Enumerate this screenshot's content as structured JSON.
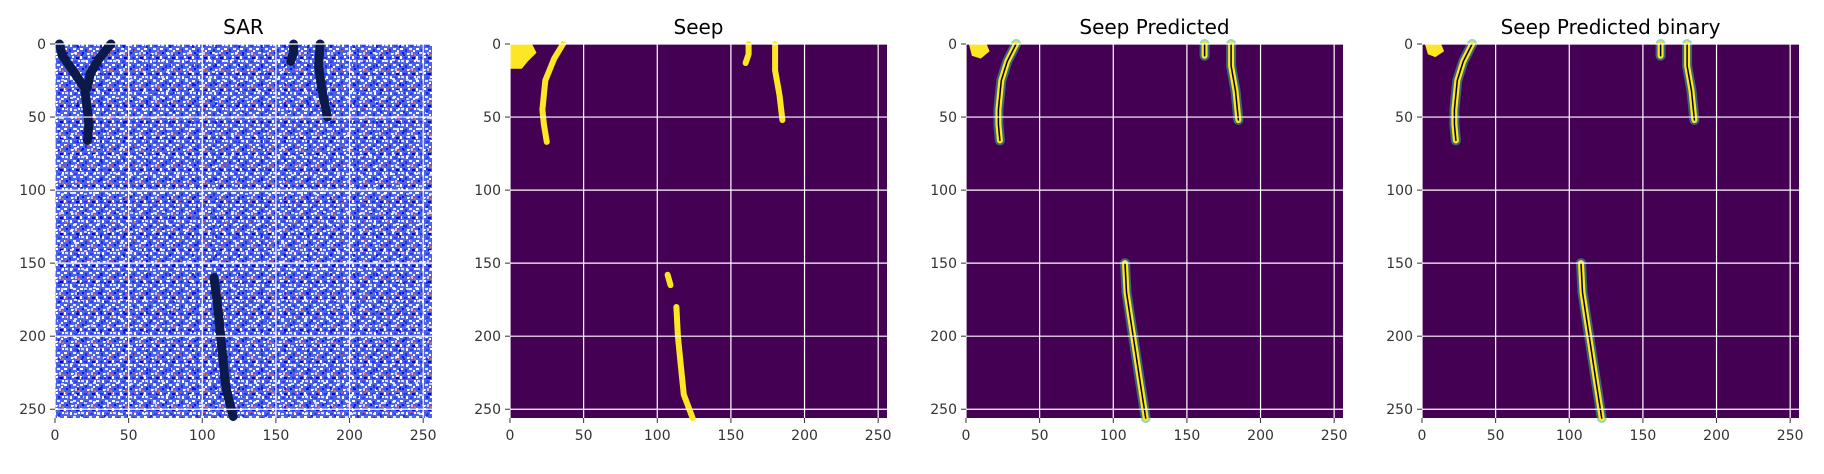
{
  "figure": {
    "panels": [
      {
        "title": "SAR"
      },
      {
        "title": "Seep"
      },
      {
        "title": "Seep Predicted"
      },
      {
        "title": "Seep Predicted binary"
      }
    ]
  },
  "chart_data": [
    {
      "type": "heatmap",
      "title": "SAR",
      "colormap": "bwr",
      "xlim": [
        0,
        256
      ],
      "ylim": [
        256,
        0
      ],
      "xticks": [
        0,
        50,
        100,
        150,
        200,
        250
      ],
      "yticks": [
        0,
        50,
        100,
        150,
        200,
        250
      ],
      "grid": true,
      "overlay": "seep contours in dark navy",
      "seep_regions": [
        {
          "name": "top-left",
          "path": [
            [
              3,
              0
            ],
            [
              5,
              8
            ],
            [
              12,
              18
            ],
            [
              20,
              30
            ],
            [
              22,
              45
            ],
            [
              23,
              55
            ],
            [
              22,
              66
            ]
          ]
        },
        {
          "name": "top-left-fork",
          "path": [
            [
              38,
              0
            ],
            [
              30,
              10
            ],
            [
              24,
              20
            ],
            [
              22,
              30
            ]
          ]
        },
        {
          "name": "top-center",
          "path": [
            [
              162,
              0
            ],
            [
              162,
              6
            ],
            [
              160,
              12
            ]
          ]
        },
        {
          "name": "top-right",
          "path": [
            [
              180,
              0
            ],
            [
              179,
              15
            ],
            [
              181,
              30
            ],
            [
              185,
              50
            ]
          ]
        },
        {
          "name": "bottom-center",
          "path": [
            [
              108,
              160
            ],
            [
              110,
              175
            ],
            [
              112,
              195
            ],
            [
              114,
              215
            ],
            [
              116,
              235
            ],
            [
              121,
              255
            ]
          ]
        }
      ]
    },
    {
      "type": "heatmap",
      "title": "Seep",
      "colormap": "viridis",
      "xlim": [
        0,
        256
      ],
      "ylim": [
        256,
        0
      ],
      "xticks": [
        0,
        50,
        100,
        150,
        200,
        250
      ],
      "yticks": [
        0,
        50,
        100,
        150,
        200,
        250
      ],
      "grid": true,
      "background_color": "#440154",
      "seep_color": "#fde725",
      "seep_regions": [
        {
          "name": "top-left-blob",
          "polygon": [
            [
              0,
              0
            ],
            [
              15,
              0
            ],
            [
              18,
              6
            ],
            [
              12,
              12
            ],
            [
              8,
              17
            ],
            [
              0,
              17
            ]
          ]
        },
        {
          "name": "top-left-streak",
          "path": [
            [
              36,
              0
            ],
            [
              30,
              10
            ],
            [
              24,
              25
            ],
            [
              22,
              45
            ],
            [
              23,
              55
            ],
            [
              25,
              67
            ]
          ]
        },
        {
          "name": "top-center",
          "path": [
            [
              162,
              0
            ],
            [
              162,
              7
            ],
            [
              160,
              13
            ]
          ]
        },
        {
          "name": "top-right",
          "path": [
            [
              180,
              0
            ],
            [
              180,
              18
            ],
            [
              183,
              35
            ],
            [
              185,
              52
            ]
          ]
        },
        {
          "name": "bottom-left-dot",
          "path": [
            [
              107,
              158
            ],
            [
              109,
              165
            ]
          ]
        },
        {
          "name": "bottom-streak",
          "path": [
            [
              113,
              180
            ],
            [
              114,
              200
            ],
            [
              116,
              220
            ],
            [
              118,
              240
            ],
            [
              124,
              256
            ]
          ]
        }
      ]
    },
    {
      "type": "heatmap",
      "title": "Seep Predicted",
      "colormap": "viridis",
      "xlim": [
        0,
        256
      ],
      "ylim": [
        256,
        0
      ],
      "xticks": [
        0,
        50,
        100,
        150,
        200,
        250
      ],
      "yticks": [
        0,
        50,
        100,
        150,
        200,
        250
      ],
      "grid": true,
      "background_color": "#440154",
      "seep_color": "#fde725",
      "overlay": "ground truth contours in black",
      "seep_regions": [
        {
          "name": "top-left-blob",
          "polygon": [
            [
              2,
              0
            ],
            [
              14,
              0
            ],
            [
              16,
              5
            ],
            [
              10,
              10
            ],
            [
              4,
              8
            ]
          ]
        },
        {
          "name": "top-left-streak",
          "path": [
            [
              34,
              0
            ],
            [
              28,
              12
            ],
            [
              24,
              25
            ],
            [
              22,
              45
            ],
            [
              22,
              55
            ],
            [
              23,
              66
            ]
          ]
        },
        {
          "name": "top-center",
          "path": [
            [
              162,
              0
            ],
            [
              162,
              8
            ]
          ]
        },
        {
          "name": "top-right",
          "path": [
            [
              180,
              0
            ],
            [
              180,
              15
            ],
            [
              183,
              32
            ],
            [
              185,
              52
            ]
          ]
        },
        {
          "name": "bottom-streak",
          "path": [
            [
              108,
              150
            ],
            [
              109,
              170
            ],
            [
              112,
              190
            ],
            [
              115,
              210
            ],
            [
              118,
              230
            ],
            [
              122,
              256
            ]
          ]
        }
      ]
    },
    {
      "type": "heatmap",
      "title": "Seep Predicted binary",
      "colormap": "viridis",
      "xlim": [
        0,
        256
      ],
      "ylim": [
        256,
        0
      ],
      "xticks": [
        0,
        50,
        100,
        150,
        200,
        250
      ],
      "yticks": [
        0,
        50,
        100,
        150,
        200,
        250
      ],
      "grid": true,
      "background_color": "#440154",
      "seep_color": "#fde725",
      "overlay": "ground truth contours in black",
      "seep_regions": [
        {
          "name": "top-left-blob",
          "polygon": [
            [
              2,
              0
            ],
            [
              13,
              0
            ],
            [
              15,
              5
            ],
            [
              9,
              9
            ],
            [
              4,
              7
            ]
          ]
        },
        {
          "name": "top-left-streak",
          "path": [
            [
              34,
              0
            ],
            [
              28,
              12
            ],
            [
              24,
              25
            ],
            [
              22,
              45
            ],
            [
              22,
              55
            ],
            [
              23,
              66
            ]
          ]
        },
        {
          "name": "top-center",
          "path": [
            [
              162,
              0
            ],
            [
              162,
              8
            ]
          ]
        },
        {
          "name": "top-right",
          "path": [
            [
              180,
              0
            ],
            [
              180,
              15
            ],
            [
              183,
              32
            ],
            [
              185,
              52
            ]
          ]
        },
        {
          "name": "bottom-streak",
          "path": [
            [
              108,
              150
            ],
            [
              109,
              170
            ],
            [
              112,
              190
            ],
            [
              115,
              210
            ],
            [
              118,
              230
            ],
            [
              122,
              256
            ]
          ]
        }
      ]
    }
  ]
}
